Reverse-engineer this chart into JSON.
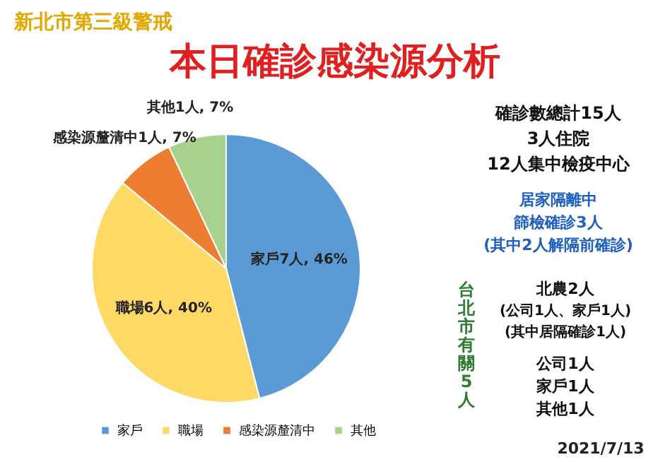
{
  "chart_data": {
    "type": "pie",
    "title": "本日確診感染源分析",
    "subtitle": "新北市第三級警戒",
    "categories": [
      "家戶",
      "職場",
      "感染源釐清中",
      "其他"
    ],
    "values": [
      46,
      40,
      7,
      7
    ],
    "colors": [
      "#5b9bd5",
      "#ffd966",
      "#ed7d31",
      "#a9d18e"
    ],
    "value_labels": [
      "家戶7人, 46%",
      "職場6人, 40%",
      "感染源釐清中1人, 7%",
      "其他1人, 7%"
    ],
    "legend": "bottom",
    "annotations": [
      "確診數總計15人",
      "3人住院",
      "12人集中檢疫中心",
      "居家隔離中",
      "篩檢確診3人",
      "(其中2人解隔前確診)",
      "台北市有關5人",
      "北農2人",
      "(公司1人、家戶1人)",
      "(其中居隔確診1人)",
      "公司1人",
      "家戶1人",
      "其他1人",
      "2021/7/13"
    ]
  }
}
